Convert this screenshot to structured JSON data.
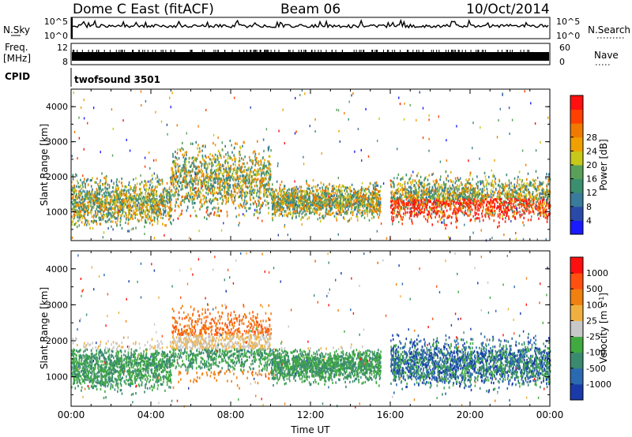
{
  "header": {
    "title": "Dome C East (fitACF)",
    "beam": "Beam 06",
    "date": "10/Oct/2014"
  },
  "panels": {
    "nsky": {
      "label": "N.Sky",
      "tick_top": "10^5",
      "tick_bottom": "10^0"
    },
    "nsearch": {
      "label": "N.Search",
      "tick_top": "10^5",
      "tick_bottom": "10^0"
    },
    "freq": {
      "label_line1": "Freq.",
      "label_line2": "[MHz]",
      "tick_top": "12",
      "tick_bottom": "8"
    },
    "nave": {
      "label": "Nave",
      "tick_top": "60",
      "tick_bottom": "0"
    },
    "cpid": {
      "label": "CPID",
      "program": "twofsound 3501"
    }
  },
  "chart_data": [
    {
      "type": "heatmap",
      "title": "",
      "xlabel": "",
      "ylabel": "Slant Range [km]",
      "xlim": [
        "00:00",
        "24:00"
      ],
      "ylim": [
        180,
        4500
      ],
      "yticks": [
        "1000",
        "2000",
        "3000",
        "4000"
      ],
      "colorbar": {
        "label": "Power [dB]",
        "ticks": [
          "4",
          "8",
          "12",
          "16",
          "20",
          "24",
          "28"
        ],
        "colors": [
          "#1a1aff",
          "#2a4aa8",
          "#3a7a9a",
          "#3a8f70",
          "#5aa05a",
          "#c8c81a",
          "#f0a000",
          "#f07a00",
          "#ff4000",
          "#ff1010"
        ]
      },
      "echo_bands": [
        {
          "from": "00:00",
          "to": "05:00",
          "range_km": [
            400,
            2200
          ]
        },
        {
          "from": "05:00",
          "to": "10:00",
          "range_km": [
            600,
            3300
          ]
        },
        {
          "from": "10:00",
          "to": "15:30",
          "range_km": [
            700,
            2000
          ]
        },
        {
          "from": "16:00",
          "to": "24:00",
          "range_km": [
            500,
            2300
          ]
        }
      ]
    },
    {
      "type": "heatmap",
      "title": "",
      "xlabel": "Time UT",
      "ylabel": "Slant Range [km]",
      "xlim": [
        "00:00",
        "24:00"
      ],
      "ylim": [
        180,
        4500
      ],
      "xticks": [
        "00:00",
        "04:00",
        "08:00",
        "12:00",
        "16:00",
        "20:00",
        "00:00"
      ],
      "yticks": [
        "1000",
        "2000",
        "3000",
        "4000"
      ],
      "colorbar": {
        "label": "Velocity [m s-1]",
        "label_main": "Velocity [m s",
        "label_sup": "-1",
        "label_end": "]",
        "ticks": [
          "1000",
          "500",
          "100",
          "25",
          "-25",
          "-100",
          "-500",
          "-1000"
        ],
        "colors": [
          "#1a3aaa",
          "#2a6ab0",
          "#3a8a70",
          "#40aa40",
          "#c8c8c8",
          "#f0b040",
          "#f08010",
          "#ff5010",
          "#ff1010"
        ]
      },
      "echo_bands": [
        {
          "from": "00:00",
          "to": "05:00",
          "range_km": [
            400,
            2200
          ]
        },
        {
          "from": "05:00",
          "to": "10:00",
          "range_km": [
            600,
            3300
          ]
        },
        {
          "from": "10:00",
          "to": "15:30",
          "range_km": [
            700,
            2000
          ]
        },
        {
          "from": "16:00",
          "to": "24:00",
          "range_km": [
            500,
            2300
          ]
        }
      ]
    }
  ]
}
